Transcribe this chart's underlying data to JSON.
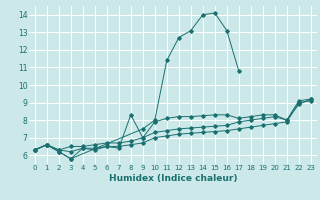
{
  "xlabel": "Humidex (Indice chaleur)",
  "bg_color": "#cce8e8",
  "grid_color": "#ffffff",
  "line_color": "#1a7070",
  "xlim": [
    -0.5,
    23.5
  ],
  "ylim": [
    5.5,
    14.5
  ],
  "xticks": [
    0,
    1,
    2,
    3,
    4,
    5,
    6,
    7,
    8,
    9,
    10,
    11,
    12,
    13,
    14,
    15,
    16,
    17,
    18,
    19,
    20,
    21,
    22,
    23
  ],
  "yticks": [
    6,
    7,
    8,
    9,
    10,
    11,
    12,
    13,
    14
  ],
  "series": [
    {
      "x": [
        0,
        1,
        2,
        3,
        4,
        5,
        6,
        7,
        8,
        9,
        10,
        11,
        12,
        13,
        14,
        15,
        16,
        17,
        18,
        19,
        20,
        21,
        22,
        23
      ],
      "y": [
        6.3,
        6.6,
        6.3,
        6.2,
        6.4,
        6.4,
        6.5,
        6.5,
        6.6,
        6.7,
        7.0,
        7.1,
        7.2,
        7.25,
        7.3,
        7.35,
        7.4,
        7.5,
        7.6,
        7.7,
        7.8,
        7.9,
        9.0,
        9.1
      ]
    },
    {
      "x": [
        0,
        1,
        2,
        3,
        4,
        5,
        6,
        7,
        8,
        9,
        10,
        11,
        12,
        13,
        14,
        15,
        16,
        17,
        18,
        19,
        20,
        21,
        22,
        23
      ],
      "y": [
        6.3,
        6.6,
        6.3,
        6.5,
        6.5,
        6.6,
        6.7,
        6.7,
        6.8,
        7.0,
        7.3,
        7.4,
        7.5,
        7.55,
        7.6,
        7.65,
        7.7,
        7.9,
        8.0,
        8.1,
        8.2,
        8.0,
        9.1,
        9.2
      ]
    },
    {
      "x": [
        0,
        1,
        2,
        3,
        4,
        5,
        6,
        7,
        8,
        9,
        10,
        11,
        12,
        13,
        14,
        15,
        16,
        17,
        18,
        19,
        20,
        21,
        22,
        23
      ],
      "y": [
        6.3,
        6.6,
        6.2,
        5.8,
        6.4,
        6.3,
        6.5,
        6.4,
        8.3,
        7.0,
        7.9,
        8.1,
        8.2,
        8.2,
        8.25,
        8.3,
        8.3,
        8.1,
        8.2,
        8.3,
        8.3,
        8.0,
        8.9,
        9.2
      ]
    },
    {
      "x": [
        0,
        1,
        2,
        3,
        9,
        10,
        11,
        12,
        13,
        14,
        15,
        16,
        17
      ],
      "y": [
        6.3,
        6.6,
        6.2,
        5.8,
        7.5,
        8.0,
        11.4,
        12.7,
        13.1,
        14.0,
        14.1,
        13.1,
        10.8
      ]
    }
  ]
}
